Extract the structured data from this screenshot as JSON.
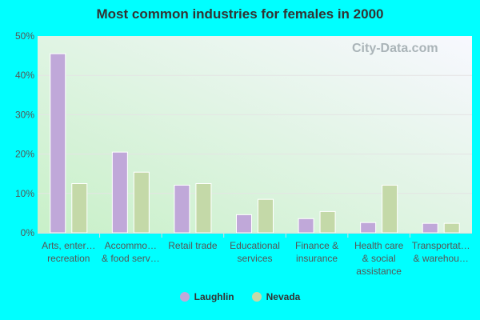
{
  "chart_data": {
    "type": "bar",
    "title": "Most common industries for females in 2000",
    "categories": [
      [
        "Arts, enter…",
        "recreation"
      ],
      [
        "Accommo…",
        "& food serv…"
      ],
      [
        "Retail trade"
      ],
      [
        "Educational",
        "services"
      ],
      [
        "Finance &",
        "insurance"
      ],
      [
        "Health care",
        "& social",
        "assistance"
      ],
      [
        "Transportat…",
        "& warehou…"
      ]
    ],
    "series": [
      {
        "name": "Laughlin",
        "color": "#c0a8d9",
        "values": [
          45.5,
          20.5,
          12.1,
          4.6,
          3.6,
          2.6,
          2.4
        ]
      },
      {
        "name": "Nevada",
        "color": "#c4d9a8",
        "values": [
          12.5,
          15.4,
          12.5,
          8.5,
          5.4,
          12.1,
          2.4
        ]
      }
    ],
    "ylim": [
      0,
      50
    ],
    "yticks": [
      "0%",
      "10%",
      "20%",
      "30%",
      "40%",
      "50%"
    ],
    "grid": true,
    "legend_placement": "bottom",
    "watermark": "City-Data.com"
  }
}
